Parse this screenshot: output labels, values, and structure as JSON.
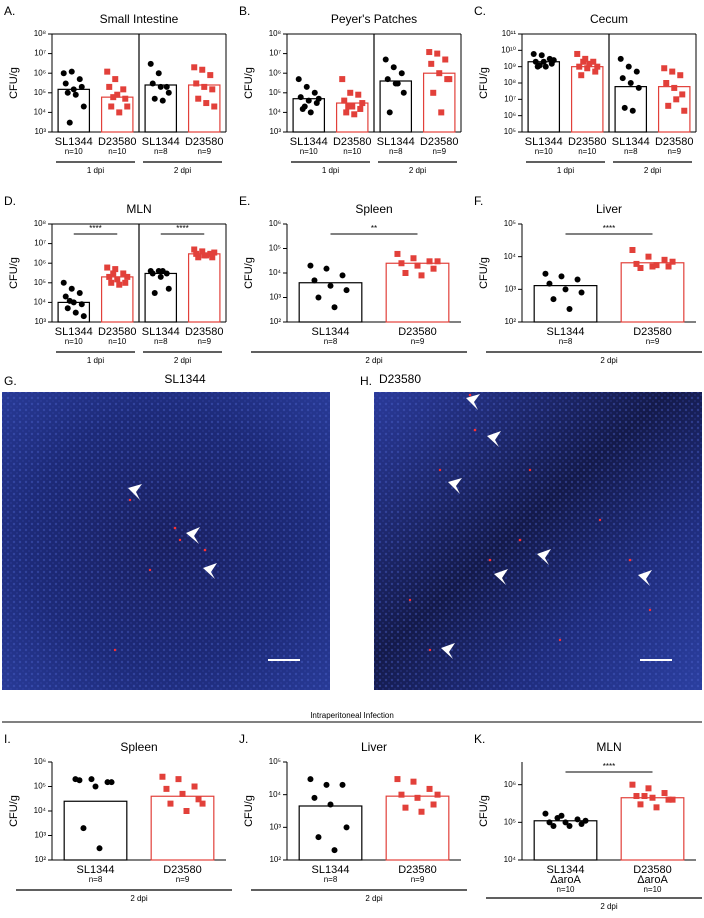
{
  "chart_data": [
    {
      "panel": "A.",
      "type": "dotbar",
      "title": "Small Intestine",
      "ylabel": "CFU/g",
      "log": true,
      "frame": true,
      "ylim": [
        1000,
        100000000
      ],
      "yticks": [
        {
          "value": 1000,
          "label": "10³"
        },
        {
          "value": 10000,
          "label": "10⁴"
        },
        {
          "value": 100000,
          "label": "10⁵"
        },
        {
          "value": 1000000,
          "label": "10⁶"
        },
        {
          "value": 10000000,
          "label": "10⁷"
        },
        {
          "value": 100000000,
          "label": "10⁸"
        }
      ],
      "categories": [
        "SL1344",
        "D23580",
        "SL1344",
        "D23580"
      ],
      "n_labels": [
        "n=10",
        "n=10",
        "n=8",
        "n=9"
      ],
      "colors": [
        "#000000",
        "#e2403a",
        "#000000",
        "#e2403a"
      ],
      "markers": [
        "circle",
        "square",
        "circle",
        "square"
      ],
      "groups": [
        "1 dpi",
        "2 dpi"
      ],
      "bar_values": [
        150000,
        60000,
        250000,
        250000
      ],
      "points": [
        [
          1000000,
          1200000,
          500000,
          300000,
          150000,
          200000,
          100000,
          80000,
          20000,
          3000
        ],
        [
          1200000,
          500000,
          150000,
          200000,
          80000,
          50000,
          20000,
          10000,
          20000,
          60000
        ],
        [
          3000000,
          1000000,
          200000,
          300000,
          200000,
          100000,
          50000,
          40000
        ],
        [
          2000000,
          1500000,
          800000,
          300000,
          200000,
          150000,
          50000,
          30000,
          20000
        ]
      ]
    },
    {
      "panel": "B.",
      "type": "dotbar",
      "title": "Peyer's Patches",
      "ylabel": "CFU/g",
      "log": true,
      "frame": true,
      "ylim": [
        1000,
        100000000
      ],
      "yticks": [
        {
          "value": 1000,
          "label": "10³"
        },
        {
          "value": 10000,
          "label": "10⁴"
        },
        {
          "value": 100000,
          "label": "10⁵"
        },
        {
          "value": 1000000,
          "label": "10⁶"
        },
        {
          "value": 10000000,
          "label": "10⁷"
        },
        {
          "value": 100000000,
          "label": "10⁸"
        }
      ],
      "categories": [
        "SL1344",
        "D23580",
        "SL1344",
        "D23580"
      ],
      "n_labels": [
        "n=10",
        "n=10",
        "n=8",
        "n=9"
      ],
      "colors": [
        "#000000",
        "#e2403a",
        "#000000",
        "#e2403a"
      ],
      "markers": [
        "circle",
        "square",
        "circle",
        "square"
      ],
      "groups": [
        "1 dpi",
        "2 dpi"
      ],
      "bar_values": [
        50000,
        30000,
        400000,
        1000000
      ],
      "points": [
        [
          500000,
          200000,
          100000,
          60000,
          40000,
          30000,
          15000,
          10000,
          50000,
          20000
        ],
        [
          500000,
          100000,
          80000,
          40000,
          20000,
          15000,
          10000,
          8000,
          30000,
          20000
        ],
        [
          5000000,
          2000000,
          1000000,
          500000,
          300000,
          100000,
          10000,
          300000
        ],
        [
          12000000,
          10000000,
          5000000,
          3000000,
          1000000,
          500000,
          100000,
          10000,
          500000
        ]
      ]
    },
    {
      "panel": "C.",
      "type": "dotbar",
      "title": "Cecum",
      "ylabel": "CFU/g",
      "log": true,
      "frame": true,
      "ylim": [
        100000,
        100000000000
      ],
      "yticks": [
        {
          "value": 100000,
          "label": "10⁵"
        },
        {
          "value": 1000000,
          "label": "10⁶"
        },
        {
          "value": 10000000,
          "label": "10⁷"
        },
        {
          "value": 100000000,
          "label": "10⁸"
        },
        {
          "value": 1000000000,
          "label": "10⁹"
        },
        {
          "value": 10000000000,
          "label": "10¹⁰"
        },
        {
          "value": 100000000000,
          "label": "10¹¹"
        }
      ],
      "categories": [
        "SL1344",
        "D23580",
        "SL1344",
        "D23580"
      ],
      "n_labels": [
        "n=10",
        "n=10",
        "n=8",
        "n=9"
      ],
      "colors": [
        "#000000",
        "#e2403a",
        "#000000",
        "#e2403a"
      ],
      "markers": [
        "circle",
        "square",
        "circle",
        "square"
      ],
      "groups": [
        "1 dpi",
        "2 dpi"
      ],
      "bar_values": [
        2000000000,
        1000000000,
        60000000,
        60000000
      ],
      "points": [
        [
          6000000000,
          5000000000,
          3000000000,
          2000000000,
          2000000000,
          1500000000,
          1000000000,
          1000000000,
          2500000000,
          1200000000
        ],
        [
          6000000000,
          3000000000,
          2000000000,
          1000000000,
          800000000,
          500000000,
          300000000,
          1500000000,
          1000000000,
          2000000000
        ],
        [
          3000000000,
          1000000000,
          500000000,
          200000000,
          100000000,
          50000000,
          3000000,
          2000000
        ],
        [
          800000000,
          500000000,
          300000000,
          100000000,
          50000000,
          20000000,
          4000000,
          10000000,
          2000000
        ]
      ]
    },
    {
      "panel": "D.",
      "type": "dotbar",
      "title": "MLN",
      "ylabel": "CFU/g",
      "log": true,
      "frame": true,
      "ylim": [
        1000,
        100000000
      ],
      "yticks": [
        {
          "value": 1000,
          "label": "10³"
        },
        {
          "value": 10000,
          "label": "10⁴"
        },
        {
          "value": 100000,
          "label": "10⁵"
        },
        {
          "value": 1000000,
          "label": "10⁶"
        },
        {
          "value": 10000000,
          "label": "10⁷"
        },
        {
          "value": 100000000,
          "label": "10⁸"
        }
      ],
      "categories": [
        "SL1344",
        "D23580",
        "SL1344",
        "D23580"
      ],
      "n_labels": [
        "n=10",
        "n=10",
        "n=8",
        "n=9"
      ],
      "colors": [
        "#000000",
        "#e2403a",
        "#000000",
        "#e2403a"
      ],
      "markers": [
        "circle",
        "square",
        "circle",
        "square"
      ],
      "groups": [
        "1 dpi",
        "2 dpi"
      ],
      "significance": [
        "****",
        "****"
      ],
      "bar_values": [
        10000,
        200000,
        300000,
        3000000
      ],
      "points": [
        [
          100000,
          50000,
          30000,
          20000,
          10000,
          8000,
          5000,
          3000,
          2000,
          12000
        ],
        [
          600000,
          500000,
          300000,
          200000,
          150000,
          100000,
          100000,
          80000,
          200000,
          300000
        ],
        [
          400000,
          400000,
          300000,
          300000,
          200000,
          50000,
          30000,
          400000
        ],
        [
          5000000,
          4000000,
          3000000,
          3000000,
          2500000,
          2000000,
          2000000,
          2500000,
          3500000
        ]
      ]
    },
    {
      "panel": "E.",
      "type": "dotbar",
      "title": "Spleen",
      "ylabel": "CFU/g",
      "log": true,
      "frame": false,
      "ylim": [
        100,
        1000000
      ],
      "yticks": [
        {
          "value": 100,
          "label": "10²"
        },
        {
          "value": 1000,
          "label": "10³"
        },
        {
          "value": 10000,
          "label": "10⁴"
        },
        {
          "value": 100000,
          "label": "10⁵"
        },
        {
          "value": 1000000,
          "label": "10⁶"
        }
      ],
      "categories": [
        "SL1344",
        "D23580"
      ],
      "n_labels": [
        "n=8",
        "n=9"
      ],
      "colors": [
        "#000000",
        "#e2403a"
      ],
      "markers": [
        "circle",
        "square"
      ],
      "groups": [
        "2 dpi"
      ],
      "significance": [
        "**"
      ],
      "bar_values": [
        4000,
        25000
      ],
      "points": [
        [
          20000,
          15000,
          8000,
          5000,
          3000,
          2000,
          1000,
          400
        ],
        [
          60000,
          40000,
          30000,
          25000,
          20000,
          15000,
          10000,
          8000,
          30000
        ]
      ]
    },
    {
      "panel": "F.",
      "type": "dotbar",
      "title": "Liver",
      "ylabel": "CFU/g",
      "log": true,
      "frame": false,
      "ylim": [
        100,
        100000
      ],
      "yticks": [
        {
          "value": 100,
          "label": "10²"
        },
        {
          "value": 1000,
          "label": "10³"
        },
        {
          "value": 10000,
          "label": "10⁴"
        },
        {
          "value": 100000,
          "label": "10⁵"
        }
      ],
      "categories": [
        "SL1344",
        "D23580"
      ],
      "n_labels": [
        "n=8",
        "n=9"
      ],
      "colors": [
        "#000000",
        "#e2403a"
      ],
      "markers": [
        "circle",
        "square"
      ],
      "groups": [
        "2 dpi"
      ],
      "significance": [
        "****"
      ],
      "bar_values": [
        1300,
        6500
      ],
      "points": [
        [
          3000,
          2500,
          2000,
          1500,
          1000,
          800,
          500,
          250
        ],
        [
          16000,
          10000,
          8000,
          6000,
          5000,
          5000,
          4500,
          5500,
          7000
        ]
      ]
    },
    {
      "panel": "I.",
      "type": "dotbar",
      "title": "Spleen",
      "ylabel": "CFU/g",
      "log": true,
      "frame": false,
      "ylim": [
        100,
        1000000
      ],
      "yticks": [
        {
          "value": 100,
          "label": "10²"
        },
        {
          "value": 1000,
          "label": "10³"
        },
        {
          "value": 10000,
          "label": "10⁴"
        },
        {
          "value": 100000,
          "label": "10⁵"
        },
        {
          "value": 1000000,
          "label": "10⁶"
        }
      ],
      "categories": [
        "SL1344",
        "D23580"
      ],
      "n_labels": [
        "n=8",
        "n=9"
      ],
      "colors": [
        "#000000",
        "#e2403a"
      ],
      "markers": [
        "circle",
        "square"
      ],
      "groups": [
        "2 dpi"
      ],
      "bar_values": [
        25000,
        40000
      ],
      "points": [
        [
          200000,
          200000,
          150000,
          180000,
          100000,
          150000,
          2000,
          300
        ],
        [
          250000,
          200000,
          100000,
          80000,
          50000,
          30000,
          20000,
          10000,
          20000
        ]
      ]
    },
    {
      "panel": "J.",
      "type": "dotbar",
      "title": "Liver",
      "ylabel": "CFU/g",
      "log": true,
      "frame": false,
      "ylim": [
        100,
        100000
      ],
      "yticks": [
        {
          "value": 100,
          "label": "10²"
        },
        {
          "value": 1000,
          "label": "10³"
        },
        {
          "value": 10000,
          "label": "10⁴"
        },
        {
          "value": 100000,
          "label": "10⁵"
        }
      ],
      "categories": [
        "SL1344",
        "D23580"
      ],
      "n_labels": [
        "n=8",
        "n=9"
      ],
      "colors": [
        "#000000",
        "#e2403a"
      ],
      "markers": [
        "circle",
        "square"
      ],
      "groups": [
        "2 dpi"
      ],
      "bar_values": [
        4500,
        9000
      ],
      "points": [
        [
          30000,
          20000,
          20000,
          8000,
          5000,
          1000,
          500,
          200
        ],
        [
          30000,
          25000,
          15000,
          10000,
          8000,
          5000,
          4000,
          3000,
          10000
        ]
      ]
    },
    {
      "panel": "K.",
      "type": "dotbar",
      "title": "MLN",
      "ylabel": "CFU/g",
      "log": true,
      "frame": false,
      "ylim": [
        10000,
        4000000
      ],
      "yticks": [
        {
          "value": 10000,
          "label": "10⁴"
        },
        {
          "value": 100000,
          "label": "10⁵"
        },
        {
          "value": 1000000,
          "label": "10⁶"
        }
      ],
      "categories": [
        "SL1344",
        "D23580"
      ],
      "strain_notes": [
        "ΔaroA",
        "ΔaroA"
      ],
      "n_labels": [
        "n=10",
        "n=10"
      ],
      "colors": [
        "#000000",
        "#e2403a"
      ],
      "markers": [
        "circle",
        "square"
      ],
      "groups": [
        "2 dpi"
      ],
      "significance": [
        "****"
      ],
      "bar_values": [
        110000,
        450000
      ],
      "points": [
        [
          170000,
          150000,
          120000,
          100000,
          100000,
          90000,
          80000,
          80000,
          110000,
          130000
        ],
        [
          1000000,
          800000,
          600000,
          500000,
          450000,
          400000,
          300000,
          250000,
          400000,
          500000
        ]
      ]
    }
  ],
  "images": [
    {
      "panel": "G.",
      "title": "SL1344"
    },
    {
      "panel": "H.",
      "title": "D23580"
    }
  ],
  "section_label": "Intraperitoneal Infection"
}
